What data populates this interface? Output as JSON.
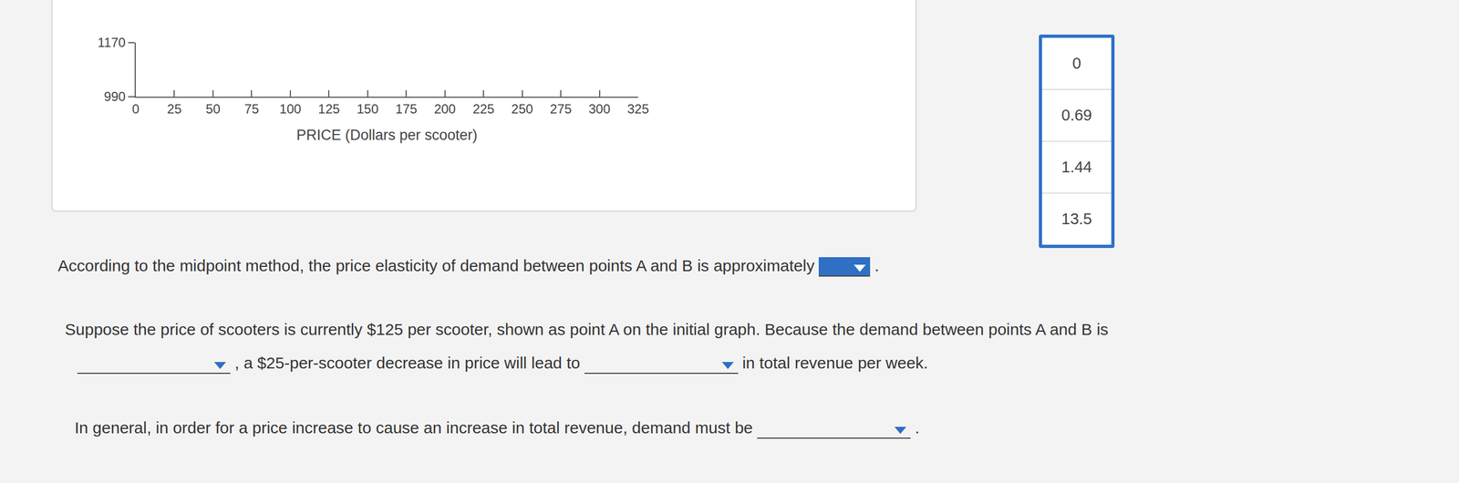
{
  "chart_data": {
    "type": "line",
    "xlabel": "PRICE (Dollars per scooter)",
    "xlim": [
      0,
      325
    ],
    "xticks": [
      0,
      25,
      50,
      75,
      100,
      125,
      150,
      175,
      200,
      225,
      250,
      275,
      300,
      325
    ],
    "ylim": [
      990,
      1170
    ],
    "yticks": [
      990,
      1170
    ],
    "grid": false
  },
  "dropdown_options": [
    "0",
    "0.69",
    "1.44",
    "13.5"
  ],
  "questions": [
    {
      "parts": [
        {
          "text": "According to the midpoint method, the price elasticity of demand between points A and B is approximately"
        },
        {
          "dropdown": true
        },
        {
          "text": "."
        }
      ]
    },
    {
      "parts": [
        {
          "text": "Suppose the price of scooters is currently $125 per scooter, shown as point A on the initial graph. Because the demand between points A and B is"
        }
      ]
    },
    {
      "parts": [
        {
          "dropdown": true
        },
        {
          "text": ", a $25-per-scooter decrease in price will lead to"
        },
        {
          "dropdown": true
        },
        {
          "text": "in total revenue per week."
        }
      ]
    },
    {
      "parts": [
        {
          "text": "In general, in order for a price increase to cause an increase in total revenue, demand must be"
        },
        {
          "dropdown": true
        },
        {
          "text": "."
        }
      ]
    }
  ]
}
